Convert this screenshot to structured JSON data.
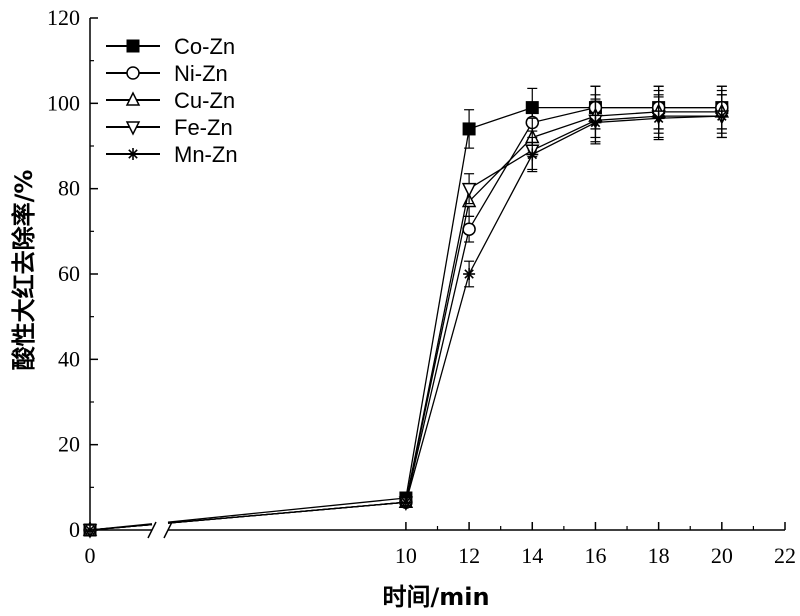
{
  "chart_data": {
    "type": "line",
    "xlabel": "时间/min",
    "ylabel": "酸性大红去除率/%",
    "xlim": [
      0,
      22
    ],
    "ylim": [
      0,
      120
    ],
    "x_axis_break": true,
    "x_ticks": [
      0,
      10,
      12,
      14,
      16,
      18,
      20,
      22
    ],
    "y_ticks": [
      0,
      20,
      40,
      60,
      80,
      100,
      120
    ],
    "x_tick_labels": [
      "0",
      "10",
      "12",
      "14",
      "16",
      "18",
      "20",
      "22"
    ],
    "y_tick_labels": [
      "0",
      "20",
      "40",
      "60",
      "80",
      "100",
      "120"
    ],
    "legend_position": "top-left",
    "grid": false,
    "x": [
      0,
      10,
      12,
      14,
      16,
      18,
      20
    ],
    "series": [
      {
        "name": "Co-Zn",
        "marker": "filled-square",
        "values": [
          0,
          7.5,
          94,
          99,
          99,
          99,
          99
        ],
        "errors": [
          0,
          0.8,
          4.5,
          4.5,
          5,
          5,
          5
        ]
      },
      {
        "name": "Ni-Zn",
        "marker": "open-circle",
        "values": [
          0,
          6.5,
          70.5,
          95.5,
          99,
          99,
          99
        ],
        "errors": [
          0,
          0.8,
          3,
          4,
          5,
          5,
          5
        ]
      },
      {
        "name": "Cu-Zn",
        "marker": "open-triangle-up",
        "values": [
          0,
          6.5,
          77,
          92,
          97,
          98,
          98
        ],
        "errors": [
          0,
          0.8,
          3.5,
          4.5,
          5,
          5,
          5
        ]
      },
      {
        "name": "Fe-Zn",
        "marker": "open-triangle-down",
        "values": [
          0,
          6.5,
          80,
          89,
          96,
          97,
          97
        ],
        "errors": [
          0,
          0.8,
          3.5,
          4.5,
          5,
          5,
          5
        ]
      },
      {
        "name": "Mn-Zn",
        "marker": "asterisk",
        "values": [
          0,
          6.5,
          60,
          88,
          95.5,
          96.5,
          97
        ],
        "errors": [
          0,
          0.8,
          3,
          4,
          5,
          5,
          5
        ]
      }
    ]
  }
}
